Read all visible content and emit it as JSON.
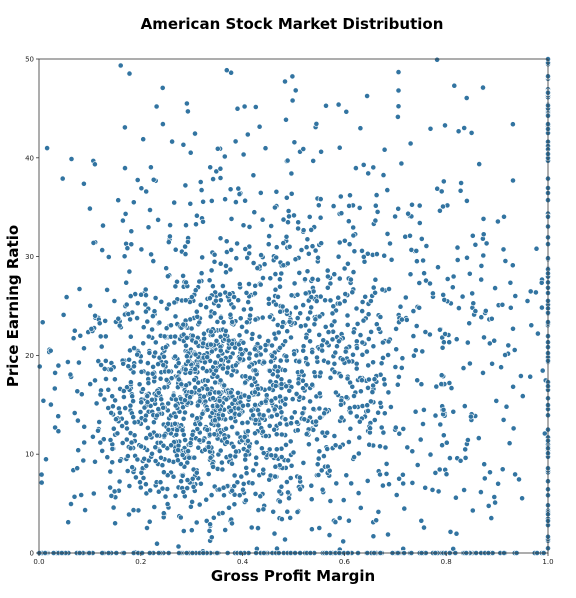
{
  "chart_data": {
    "type": "scatter",
    "title": "American Stock Market Distribution",
    "xlabel": "Gross Profit Margin",
    "ylabel": "Price Earning Ratio",
    "xlim": [
      0.0,
      1.0
    ],
    "ylim": [
      0,
      50
    ],
    "xticks": [
      "0.0",
      "0.2",
      "0.4",
      "0.6",
      "0.8",
      "1.0"
    ],
    "yticks": [
      "0",
      "10",
      "20",
      "30",
      "40",
      "50"
    ],
    "grid": false,
    "legend": "none",
    "point_color": "#3274a1",
    "point_count": 2200,
    "clusters": [
      {
        "x_center": 0.33,
        "x_spread": 0.13,
        "y_center": 15,
        "y_spread": 6,
        "share": 0.55
      },
      {
        "x_center": 0.58,
        "x_spread": 0.2,
        "y_center": 20,
        "y_spread": 9,
        "share": 0.3
      },
      {
        "x_center": 0.5,
        "x_spread": 0.3,
        "y_center": 32,
        "y_spread": 12,
        "share": 0.15
      }
    ],
    "baseline_points": {
      "y": 0,
      "x_range": [
        0.0,
        1.0
      ]
    },
    "edge_points": {
      "x": 1.0,
      "y_range": [
        0,
        50
      ]
    }
  }
}
